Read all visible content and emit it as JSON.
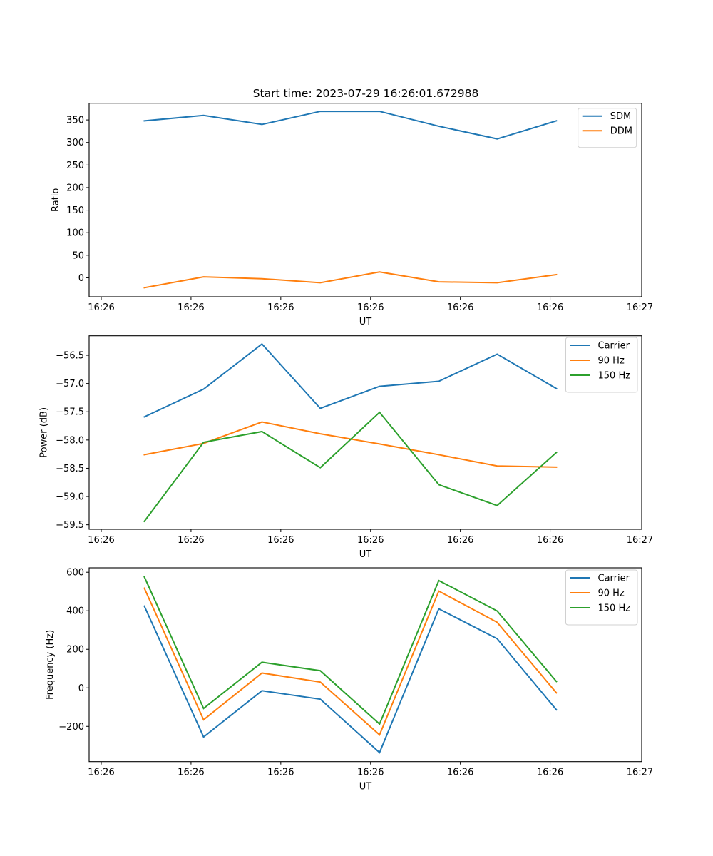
{
  "figure": {
    "title": "Start time: 2023-07-29 16:26:01.672988"
  },
  "colors": {
    "blue": "#1f77b4",
    "orange": "#ff7f0e",
    "green": "#2ca02c"
  },
  "chart_data": [
    {
      "type": "line",
      "title": "Start time: 2023-07-29 16:26:01.672988",
      "xlabel": "UT",
      "ylabel": "Ratio",
      "x_unit": "seconds after 16:26:00",
      "x": [
        4.8,
        11.4,
        17.9,
        24.4,
        31.0,
        37.6,
        44.1,
        50.7
      ],
      "xlim": [
        -1.35,
        60.2
      ],
      "xticks": [
        0,
        10,
        20,
        30,
        40,
        50,
        60
      ],
      "xtick_labels": [
        "16:26",
        "16:26",
        "16:26",
        "16:26",
        "16:26",
        "16:26",
        "16:27"
      ],
      "ylim": [
        -42,
        387
      ],
      "yticks": [
        0,
        50,
        100,
        150,
        200,
        250,
        300,
        350
      ],
      "ytick_labels": [
        "0",
        "50",
        "100",
        "150",
        "200",
        "250",
        "300",
        "350"
      ],
      "grid": false,
      "legend": "top-right",
      "series": [
        {
          "name": "SDM",
          "color": "#1f77b4",
          "values": [
            348,
            360,
            340,
            369,
            369,
            336,
            308,
            348
          ]
        },
        {
          "name": "DDM",
          "color": "#ff7f0e",
          "values": [
            -22,
            2,
            -2,
            -11,
            13,
            -9,
            -11,
            7
          ]
        }
      ]
    },
    {
      "type": "line",
      "title": "",
      "xlabel": "UT",
      "ylabel": "Power (dB)",
      "x_unit": "seconds after 16:26:00",
      "x": [
        4.8,
        11.4,
        17.9,
        24.4,
        31.0,
        37.6,
        44.1,
        50.7
      ],
      "xlim": [
        -1.35,
        60.2
      ],
      "xticks": [
        0,
        10,
        20,
        30,
        40,
        50,
        60
      ],
      "xtick_labels": [
        "16:26",
        "16:26",
        "16:26",
        "16:26",
        "16:26",
        "16:26",
        "16:27"
      ],
      "ylim": [
        -59.58,
        -56.155
      ],
      "yticks": [
        -59.5,
        -59.0,
        -58.5,
        -58.0,
        -57.5,
        -57.0,
        -56.5
      ],
      "ytick_labels": [
        "−59.5",
        "−59.0",
        "−58.5",
        "−58.0",
        "−57.5",
        "−57.0",
        "−56.5"
      ],
      "grid": false,
      "legend": "top-right",
      "series": [
        {
          "name": "Carrier",
          "color": "#1f77b4",
          "values": [
            -57.59,
            -57.1,
            -56.3,
            -57.44,
            -57.05,
            -56.96,
            -56.48,
            -57.09
          ]
        },
        {
          "name": "90 Hz",
          "color": "#ff7f0e",
          "values": [
            -58.26,
            -58.06,
            -57.68,
            -57.89,
            -58.07,
            -58.26,
            -58.46,
            -58.48
          ]
        },
        {
          "name": "150 Hz",
          "color": "#2ca02c",
          "values": [
            -59.44,
            -58.04,
            -57.85,
            -58.49,
            -57.51,
            -58.79,
            -59.16,
            -58.22
          ]
        }
      ]
    },
    {
      "type": "line",
      "title": "",
      "xlabel": "UT",
      "ylabel": "Frequency (Hz)",
      "x_unit": "seconds after 16:26:00",
      "x": [
        4.8,
        11.4,
        17.9,
        24.4,
        31.0,
        37.6,
        44.1,
        50.7
      ],
      "xlim": [
        -1.35,
        60.2
      ],
      "xticks": [
        0,
        10,
        20,
        30,
        40,
        50,
        60
      ],
      "xtick_labels": [
        "16:26",
        "16:26",
        "16:26",
        "16:26",
        "16:26",
        "16:26",
        "16:27"
      ],
      "ylim": [
        -383,
        623
      ],
      "yticks": [
        -200,
        0,
        200,
        400,
        600
      ],
      "ytick_labels": [
        "−200",
        "0",
        "200",
        "400",
        "600"
      ],
      "grid": false,
      "legend": "top-right",
      "series": [
        {
          "name": "Carrier",
          "color": "#1f77b4",
          "values": [
            424,
            -255,
            -15,
            -59,
            -336,
            410,
            255,
            -114
          ]
        },
        {
          "name": "90 Hz",
          "color": "#ff7f0e",
          "values": [
            517,
            -166,
            77,
            30,
            -244,
            502,
            340,
            -26
          ]
        },
        {
          "name": "150 Hz",
          "color": "#2ca02c",
          "values": [
            576,
            -107,
            133,
            89,
            -188,
            557,
            399,
            33
          ]
        }
      ]
    }
  ]
}
